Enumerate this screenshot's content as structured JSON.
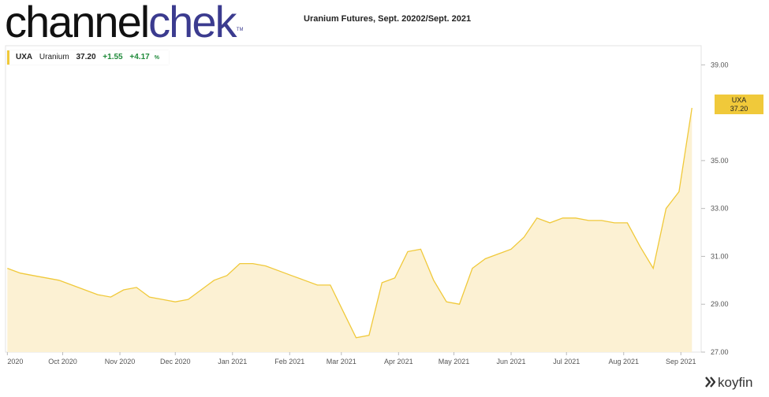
{
  "logo": {
    "part1": "channel",
    "part2": "chek",
    "tm": "TM"
  },
  "title": "Uranium Futures, Sept. 20202/Sept. 2021",
  "legend": {
    "ticker": "UXA",
    "name": "Uranium",
    "price": "37.20",
    "change": "+1.55",
    "change_pct": "+4.17",
    "pct_sign": "%"
  },
  "price_tag": {
    "ticker": "UXA",
    "price": "37.20"
  },
  "brand": "koyfin",
  "colors": {
    "line": "#f0c93a",
    "fill": "#fcf1d3",
    "positive": "#1f8a3a",
    "logo_dark": "#111111",
    "logo_accent": "#3b3b8f"
  },
  "chart_data": {
    "type": "area",
    "title": "Uranium Futures, Sept. 20202/Sept. 2021",
    "xlabel": "",
    "ylabel": "",
    "ylim": [
      27.0,
      39.8
    ],
    "yticks": [
      "27.00",
      "29.00",
      "31.00",
      "33.00",
      "35.00",
      "39.00"
    ],
    "xtick_labels": [
      "2020",
      "Oct 2020",
      "Nov 2020",
      "Dec 2020",
      "Jan 2021",
      "Feb 2021",
      "Mar 2021",
      "Apr 2021",
      "May 2021",
      "Jun 2021",
      "Jul 2021",
      "Aug 2021",
      "Sep 2021"
    ],
    "grid": false,
    "legend_position": "top-left",
    "series": [
      {
        "name": "UXA",
        "x": [
          "2020-09-01",
          "2020-09-08",
          "2020-09-15",
          "2020-09-22",
          "2020-09-29",
          "2020-10-06",
          "2020-10-13",
          "2020-10-20",
          "2020-10-27",
          "2020-11-03",
          "2020-11-10",
          "2020-11-17",
          "2020-11-24",
          "2020-12-01",
          "2020-12-08",
          "2020-12-15",
          "2020-12-22",
          "2020-12-29",
          "2021-01-05",
          "2021-01-12",
          "2021-01-19",
          "2021-01-26",
          "2021-02-02",
          "2021-02-09",
          "2021-02-16",
          "2021-02-23",
          "2021-03-02",
          "2021-03-09",
          "2021-03-16",
          "2021-03-23",
          "2021-03-30",
          "2021-04-06",
          "2021-04-13",
          "2021-04-20",
          "2021-04-27",
          "2021-05-04",
          "2021-05-11",
          "2021-05-18",
          "2021-05-25",
          "2021-06-01",
          "2021-06-08",
          "2021-06-15",
          "2021-06-22",
          "2021-06-29",
          "2021-07-06",
          "2021-07-13",
          "2021-07-20",
          "2021-07-27",
          "2021-08-03",
          "2021-08-10",
          "2021-08-17",
          "2021-08-24",
          "2021-08-31",
          "2021-09-07"
        ],
        "y": [
          30.5,
          30.3,
          30.2,
          30.1,
          30.0,
          29.8,
          29.6,
          29.4,
          29.3,
          29.6,
          29.7,
          29.3,
          29.2,
          29.1,
          29.2,
          29.6,
          30.0,
          30.2,
          30.7,
          30.7,
          30.6,
          30.4,
          30.2,
          30.0,
          29.8,
          29.8,
          28.7,
          27.6,
          27.7,
          29.9,
          30.1,
          31.2,
          31.3,
          30.0,
          29.1,
          29.0,
          30.5,
          30.9,
          31.1,
          31.3,
          31.8,
          32.6,
          32.4,
          32.6,
          32.6,
          32.5,
          32.5,
          32.4,
          32.4,
          31.4,
          30.5,
          33.0,
          33.7,
          37.2
        ]
      }
    ]
  }
}
